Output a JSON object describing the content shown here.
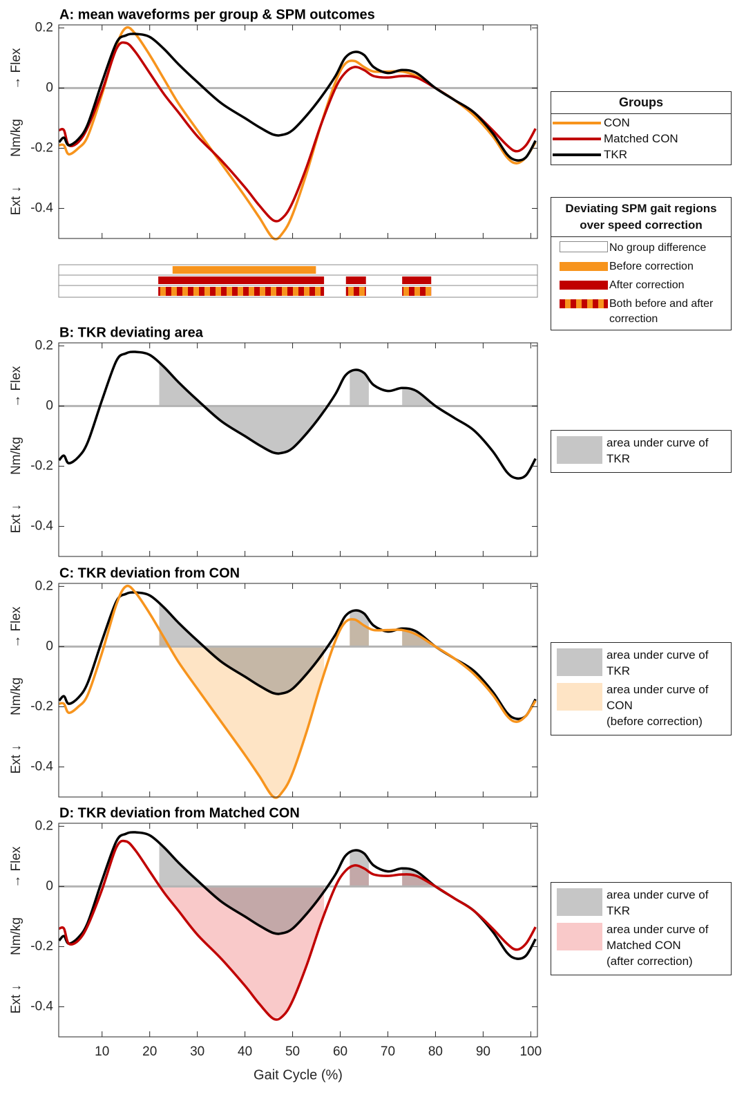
{
  "chart_data": [
    {
      "type": "line",
      "title": "A: mean waveforms per group & SPM outcomes",
      "ylabel": "Ext ↓        Nm/kg        → Flex",
      "xlim": [
        0.9,
        101.4
      ],
      "ylim": [
        -0.5,
        0.21
      ],
      "xticks": [
        10,
        20,
        30,
        40,
        50,
        60,
        70,
        80,
        90,
        100
      ],
      "yticks": [
        -0.4,
        -0.2,
        0,
        0.2
      ],
      "zero_line": true,
      "x": [
        1,
        2,
        3,
        5,
        7,
        10,
        13,
        15,
        17,
        20,
        23,
        26,
        30,
        35,
        40,
        43,
        46,
        48,
        50,
        53,
        56,
        59,
        61,
        63,
        65,
        67,
        70,
        73,
        76,
        80,
        84,
        88,
        92,
        95,
        97,
        99,
        101
      ],
      "legend": {
        "title": "Groups"
      },
      "series": [
        {
          "name": "CON",
          "color": "#f7941d",
          "values": [
            -0.19,
            -0.19,
            -0.22,
            -0.2,
            -0.16,
            -0.02,
            0.14,
            0.2,
            0.18,
            0.11,
            0.03,
            -0.05,
            -0.14,
            -0.25,
            -0.36,
            -0.43,
            -0.5,
            -0.48,
            -0.42,
            -0.28,
            -0.12,
            0.02,
            0.08,
            0.09,
            0.07,
            0.055,
            0.055,
            0.055,
            0.04,
            0.0,
            -0.04,
            -0.09,
            -0.16,
            -0.23,
            -0.25,
            -0.23,
            -0.18
          ]
        },
        {
          "name": "Matched CON",
          "color": "#c00000",
          "values": [
            -0.14,
            -0.14,
            -0.19,
            -0.18,
            -0.13,
            -0.01,
            0.13,
            0.15,
            0.12,
            0.05,
            -0.02,
            -0.08,
            -0.16,
            -0.24,
            -0.33,
            -0.39,
            -0.44,
            -0.43,
            -0.38,
            -0.26,
            -0.12,
            0.0,
            0.05,
            0.07,
            0.06,
            0.04,
            0.035,
            0.04,
            0.035,
            0.0,
            -0.04,
            -0.08,
            -0.14,
            -0.19,
            -0.21,
            -0.19,
            -0.135
          ]
        },
        {
          "name": "TKR",
          "color": "#000000",
          "values": [
            -0.18,
            -0.165,
            -0.19,
            -0.17,
            -0.12,
            0.02,
            0.15,
            0.175,
            0.18,
            0.17,
            0.13,
            0.08,
            0.02,
            -0.05,
            -0.1,
            -0.13,
            -0.155,
            -0.155,
            -0.14,
            -0.09,
            -0.03,
            0.04,
            0.1,
            0.12,
            0.11,
            0.07,
            0.05,
            0.06,
            0.05,
            0.0,
            -0.04,
            -0.08,
            -0.15,
            -0.22,
            -0.24,
            -0.23,
            -0.175
          ]
        }
      ],
      "spm": {
        "title": "Deviating SPM gait regions over speed correction",
        "items": [
          {
            "name": "No group difference",
            "colors": [
              "#ffffff"
            ]
          },
          {
            "name": "Before correction",
            "colors": [
              "#f7941d"
            ],
            "regions": [
              [
                24.8,
                54.9
              ]
            ]
          },
          {
            "name": "After correction",
            "colors": [
              "#c00000"
            ],
            "regions": [
              [
                21.8,
                56.6
              ],
              [
                61.2,
                65.4
              ],
              [
                73,
                79.1
              ]
            ]
          },
          {
            "name": "Both before and after correction",
            "colors": [
              "#c00000",
              "#f7941d"
            ],
            "regions": [
              [
                21.8,
                56.6
              ],
              [
                61.2,
                65.4
              ],
              [
                73,
                79.1
              ]
            ]
          }
        ]
      }
    },
    {
      "type": "area",
      "title": "B: TKR deviating area",
      "ylabel": "Ext ↓        Nm/kg        → Flex",
      "xlim": [
        0.9,
        101.4
      ],
      "ylim": [
        -0.5,
        0.21
      ],
      "xticks": [
        10,
        20,
        30,
        40,
        50,
        60,
        70,
        80,
        90,
        100
      ],
      "yticks": [
        -0.4,
        -0.2,
        0,
        0.2
      ],
      "zero_line": true,
      "x": [
        1,
        2,
        3,
        5,
        7,
        10,
        13,
        15,
        17,
        20,
        23,
        26,
        30,
        35,
        40,
        43,
        46,
        48,
        50,
        53,
        56,
        59,
        61,
        63,
        65,
        67,
        70,
        73,
        76,
        80,
        84,
        88,
        92,
        95,
        97,
        99,
        101
      ],
      "series": [
        {
          "name": "TKR",
          "color": "#000000",
          "fill": "rgba(128,128,128,0.45)",
          "area_label": "area under curve of\n TKR",
          "regions": [
            [
              22,
              56.6
            ],
            [
              62,
              66
            ],
            [
              73,
              79
            ]
          ],
          "values": [
            -0.18,
            -0.165,
            -0.19,
            -0.17,
            -0.12,
            0.02,
            0.15,
            0.175,
            0.18,
            0.17,
            0.13,
            0.08,
            0.02,
            -0.05,
            -0.1,
            -0.13,
            -0.155,
            -0.155,
            -0.14,
            -0.09,
            -0.03,
            0.04,
            0.1,
            0.12,
            0.11,
            0.07,
            0.05,
            0.06,
            0.05,
            0.0,
            -0.04,
            -0.08,
            -0.15,
            -0.22,
            -0.24,
            -0.23,
            -0.175
          ]
        }
      ]
    },
    {
      "type": "area",
      "title": "C: TKR deviation from CON",
      "ylabel": "Ext ↓        Nm/kg        → Flex",
      "xlim": [
        0.9,
        101.4
      ],
      "ylim": [
        -0.5,
        0.21
      ],
      "xticks": [
        10,
        20,
        30,
        40,
        50,
        60,
        70,
        80,
        90,
        100
      ],
      "yticks": [
        -0.4,
        -0.2,
        0,
        0.2
      ],
      "zero_line": true,
      "x": [
        1,
        2,
        3,
        5,
        7,
        10,
        13,
        15,
        17,
        20,
        23,
        26,
        30,
        35,
        40,
        43,
        46,
        48,
        50,
        53,
        56,
        59,
        61,
        63,
        65,
        67,
        70,
        73,
        76,
        80,
        84,
        88,
        92,
        95,
        97,
        99,
        101
      ],
      "series": [
        {
          "name": "TKR",
          "color": "#000000",
          "fill": "rgba(128,128,128,0.45)",
          "area_label": "area under curve of\n TKR",
          "regions": [
            [
              22,
              56.6
            ],
            [
              62,
              66
            ],
            [
              73,
              79
            ]
          ],
          "values": [
            -0.18,
            -0.165,
            -0.19,
            -0.17,
            -0.12,
            0.02,
            0.15,
            0.175,
            0.18,
            0.17,
            0.13,
            0.08,
            0.02,
            -0.05,
            -0.1,
            -0.13,
            -0.155,
            -0.155,
            -0.14,
            -0.09,
            -0.03,
            0.04,
            0.1,
            0.12,
            0.11,
            0.07,
            0.05,
            0.06,
            0.05,
            0.0,
            -0.04,
            -0.08,
            -0.15,
            -0.22,
            -0.24,
            -0.23,
            -0.175
          ]
        },
        {
          "name": "CON",
          "color": "#f7941d",
          "fill": "rgba(253,205,150,0.55)",
          "area_label": "area under curve of\n  CON\n   (before correction)",
          "regions": [
            [
              22,
              56.6
            ],
            [
              62,
              66
            ],
            [
              73,
              79
            ]
          ],
          "values": [
            -0.19,
            -0.19,
            -0.22,
            -0.2,
            -0.16,
            -0.02,
            0.14,
            0.2,
            0.18,
            0.11,
            0.03,
            -0.05,
            -0.14,
            -0.25,
            -0.36,
            -0.43,
            -0.5,
            -0.48,
            -0.42,
            -0.28,
            -0.12,
            0.02,
            0.08,
            0.09,
            0.07,
            0.055,
            0.055,
            0.055,
            0.04,
            0.0,
            -0.04,
            -0.09,
            -0.16,
            -0.23,
            -0.25,
            -0.23,
            -0.18
          ]
        }
      ]
    },
    {
      "type": "area",
      "title": "D: TKR deviation from Matched CON",
      "ylabel": "Ext ↓        Nm/kg        → Flex",
      "xlabel": "Gait Cycle (%)",
      "xtick_labels": true,
      "xlim": [
        0.9,
        101.4
      ],
      "ylim": [
        -0.5,
        0.21
      ],
      "xticks": [
        10,
        20,
        30,
        40,
        50,
        60,
        70,
        80,
        90,
        100
      ],
      "yticks": [
        -0.4,
        -0.2,
        0,
        0.2
      ],
      "zero_line": true,
      "x": [
        1,
        2,
        3,
        5,
        7,
        10,
        13,
        15,
        17,
        20,
        23,
        26,
        30,
        35,
        40,
        43,
        46,
        48,
        50,
        53,
        56,
        59,
        61,
        63,
        65,
        67,
        70,
        73,
        76,
        80,
        84,
        88,
        92,
        95,
        97,
        99,
        101
      ],
      "series": [
        {
          "name": "TKR",
          "color": "#000000",
          "fill": "rgba(128,128,128,0.45)",
          "area_label": "area under curve of\n TKR",
          "regions": [
            [
              22,
              56.6
            ],
            [
              62,
              66
            ],
            [
              73,
              79
            ]
          ],
          "values": [
            -0.18,
            -0.165,
            -0.19,
            -0.17,
            -0.12,
            0.02,
            0.15,
            0.175,
            0.18,
            0.17,
            0.13,
            0.08,
            0.02,
            -0.05,
            -0.1,
            -0.13,
            -0.155,
            -0.155,
            -0.14,
            -0.09,
            -0.03,
            0.04,
            0.1,
            0.12,
            0.11,
            0.07,
            0.05,
            0.06,
            0.05,
            0.0,
            -0.04,
            -0.08,
            -0.15,
            -0.22,
            -0.24,
            -0.23,
            -0.175
          ]
        },
        {
          "name": "Matched CON",
          "color": "#c00000",
          "fill": "rgba(240,120,120,0.4)",
          "area_label": "area under curve of\n  Matched CON\n   (after correction)",
          "regions": [
            [
              22,
              56.6
            ],
            [
              62,
              66
            ],
            [
              73,
              79
            ]
          ],
          "values": [
            -0.14,
            -0.14,
            -0.19,
            -0.18,
            -0.13,
            -0.01,
            0.13,
            0.15,
            0.12,
            0.05,
            -0.02,
            -0.08,
            -0.16,
            -0.24,
            -0.33,
            -0.39,
            -0.44,
            -0.43,
            -0.38,
            -0.26,
            -0.12,
            0.0,
            0.05,
            0.07,
            0.06,
            0.04,
            0.035,
            0.04,
            0.035,
            0.0,
            -0.04,
            -0.08,
            -0.14,
            -0.19,
            -0.21,
            -0.19,
            -0.135
          ]
        }
      ]
    }
  ]
}
